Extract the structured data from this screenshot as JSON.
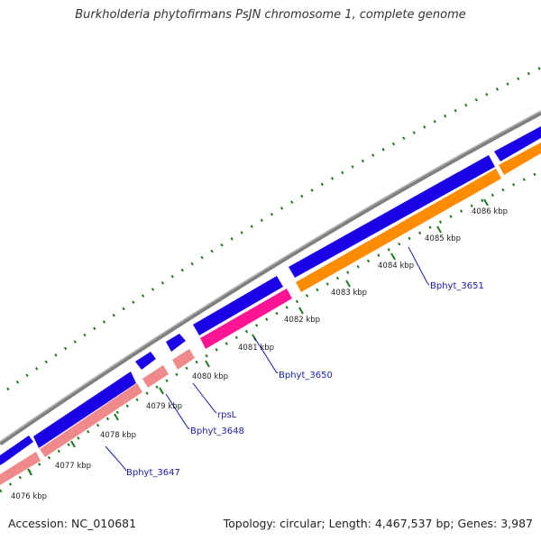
{
  "title": "Burkholderia phytofirmans PsJN chromosome 1, complete genome",
  "footer": {
    "accession": "Accession: NC_010681",
    "summary": "Topology: circular; Length: 4,467,537 bp; Genes: 3,987"
  },
  "colors": {
    "backbone": "#808080",
    "forward_gene": "#1a00e6",
    "reverse_gene_pink": "#f08a8a",
    "reverse_gene_magenta": "#ff1493",
    "reverse_gene_orange": "#ff8c00",
    "tick": "#1f7a1f",
    "label": "#1a1aa6"
  },
  "ticks": [
    {
      "label": "4076 kbp"
    },
    {
      "label": "4077 kbp"
    },
    {
      "label": "4078 kbp"
    },
    {
      "label": "4079 kbp"
    },
    {
      "label": "4080 kbp"
    },
    {
      "label": "4081 kbp"
    },
    {
      "label": "4082 kbp"
    },
    {
      "label": "4083 kbp"
    },
    {
      "label": "4084 kbp"
    },
    {
      "label": "4085 kbp"
    },
    {
      "label": "4086 kbp"
    }
  ],
  "gene_labels": [
    {
      "name": "Bphyt_3647"
    },
    {
      "name": "Bphyt_3648"
    },
    {
      "name": "rpsL"
    },
    {
      "name": "Bphyt_3650"
    },
    {
      "name": "Bphyt_3651"
    }
  ]
}
